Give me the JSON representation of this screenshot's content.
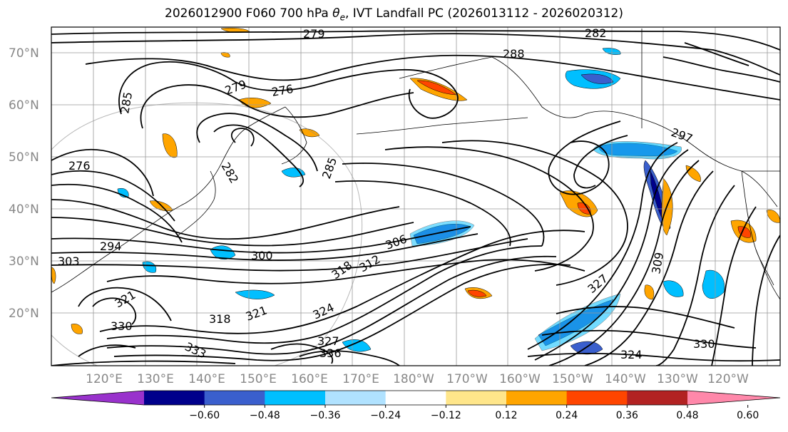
{
  "figure": {
    "title_prefix": "2026012900 F060 700 hPa ",
    "title_symbol": "θ",
    "title_subscript": "e",
    "title_suffix": ", IVT Landfall PC (2026013112 - 2026020312)"
  },
  "axes": {
    "lat_labels": [
      "70°N",
      "60°N",
      "50°N",
      "40°N",
      "30°N",
      "20°N"
    ],
    "lon_labels": [
      "120°E",
      "130°E",
      "140°E",
      "150°E",
      "160°E",
      "170°E",
      "180°W",
      "170°W",
      "160°W",
      "150°W",
      "140°W",
      "130°W",
      "120°W"
    ]
  },
  "contour_labels": [
    "279",
    "282",
    "288",
    "279",
    "276",
    "285",
    "285",
    "276",
    "282",
    "294",
    "303",
    "300",
    "306",
    "312",
    "309",
    "318",
    "318",
    "321",
    "321",
    "324",
    "327",
    "330",
    "330",
    "333",
    "336",
    "324",
    "327",
    "297"
  ],
  "colorbar": {
    "ticks": [
      "−0.60",
      "−0.48",
      "−0.36",
      "−0.24",
      "−0.12",
      "0.12",
      "0.24",
      "0.36",
      "0.48",
      "0.60"
    ],
    "colors": [
      "#9932cc",
      "#00008b",
      "#3a5fcd",
      "#00bfff",
      "#b0e2ff",
      "#ffffff",
      "#ffe68a",
      "#ffa500",
      "#ff4500",
      "#b22222",
      "#ff88aa"
    ]
  }
}
